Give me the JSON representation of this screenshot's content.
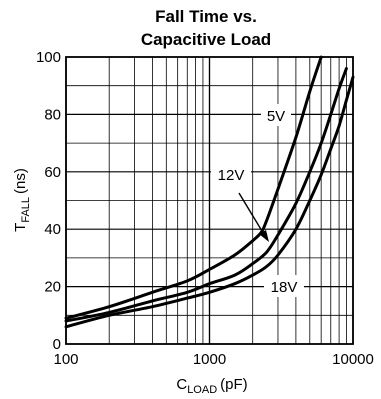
{
  "chart_data": {
    "type": "line",
    "title": "Fall Time vs.",
    "subtitle": "Capacitive Load",
    "xlabel_main": "C",
    "xlabel_sub": "LOAD",
    "xlabel_unit": "(pF)",
    "ylabel_main": "T",
    "ylabel_sub": "FALL",
    "ylabel_unit": "(ns)",
    "x_scale": "log",
    "xlim": [
      100,
      10000
    ],
    "ylim": [
      0,
      100
    ],
    "x_ticks": [
      100,
      1000,
      10000
    ],
    "x_tick_labels": [
      "100",
      "1000",
      "10000"
    ],
    "y_ticks": [
      0,
      20,
      40,
      60,
      80,
      100
    ],
    "y_tick_labels": [
      "0",
      "20",
      "40",
      "60",
      "80",
      "100"
    ],
    "grid": true,
    "series": [
      {
        "name": "5V",
        "x": [
          100,
          200,
          400,
          700,
          1000,
          1500,
          2000,
          2300,
          2500,
          3000,
          4000,
          5000,
          6000
        ],
        "y": [
          9,
          13,
          18,
          22,
          26,
          31,
          36,
          39,
          43,
          54,
          72,
          88,
          101
        ]
      },
      {
        "name": "12V",
        "x": [
          100,
          200,
          400,
          700,
          1000,
          1500,
          2000,
          2500,
          3000,
          4000,
          5000,
          6000,
          7000,
          8000,
          9000
        ],
        "y": [
          8,
          11,
          15,
          18,
          21,
          24,
          28,
          32,
          38,
          49,
          60,
          70,
          80,
          89,
          96
        ]
      },
      {
        "name": "18V",
        "x": [
          100,
          200,
          400,
          700,
          1000,
          1500,
          2000,
          2500,
          3000,
          4000,
          5000,
          6000,
          7000,
          8000,
          9000,
          10000
        ],
        "y": [
          6,
          10,
          13,
          16,
          18,
          21,
          24,
          27,
          31,
          40,
          50,
          59,
          68,
          76,
          85,
          93
        ]
      }
    ],
    "annotations": {
      "label_5v": "5V",
      "label_12v": "12V",
      "label_18v": "18V"
    }
  }
}
